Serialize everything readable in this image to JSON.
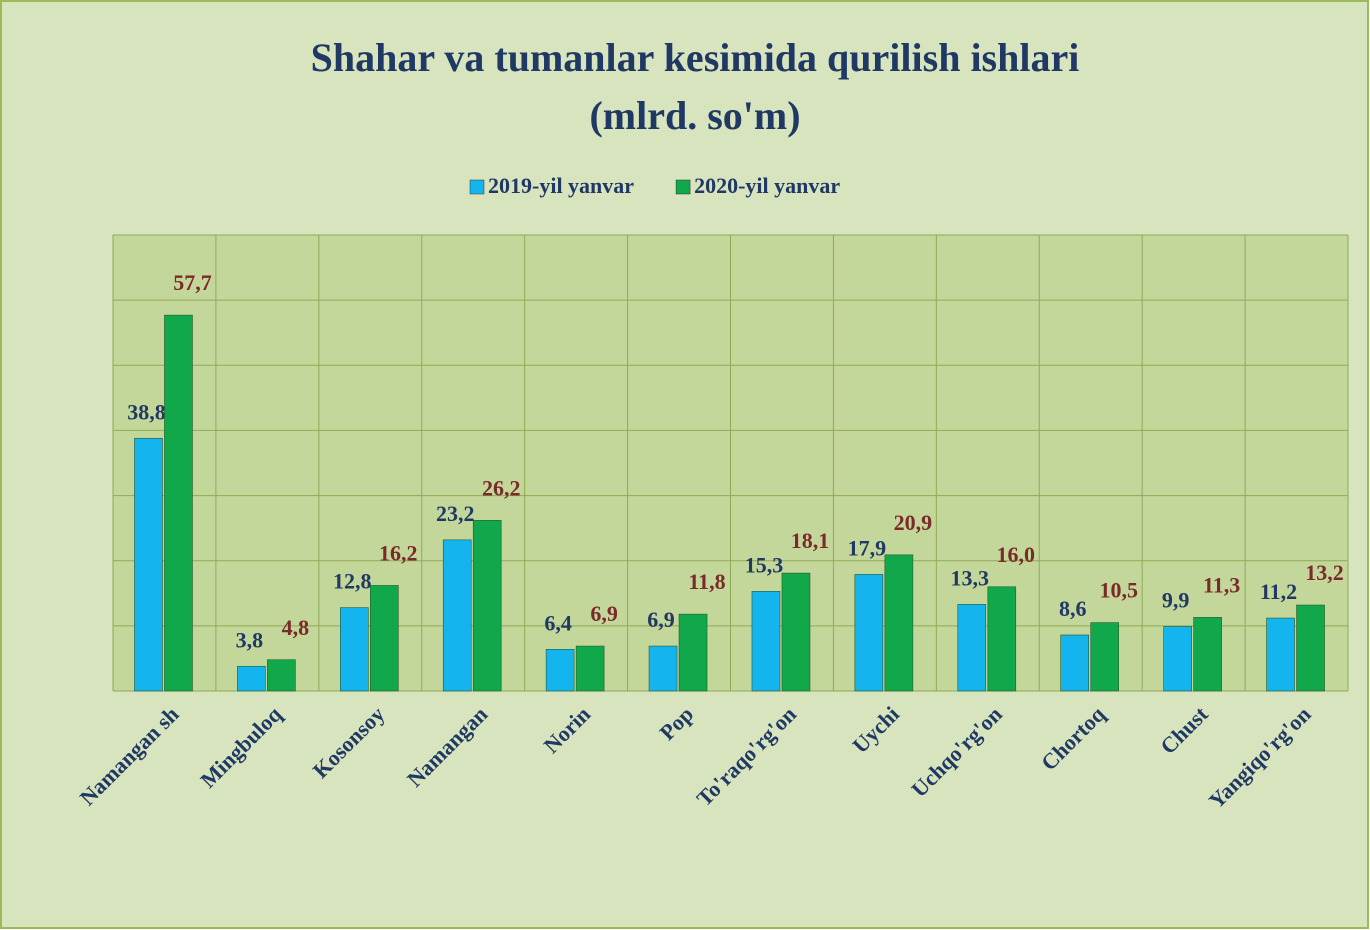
{
  "chart_data": {
    "type": "bar",
    "title": "Shahar va tumanlar kesimida qurilish ishlari",
    "subtitle": "(mlrd. so'm)",
    "categories": [
      "Namangan sh",
      "Mingbuloq",
      "Kosonsoy",
      "Namangan",
      "Norin",
      "Pop",
      "To'raqo'rg'on",
      "Uychi",
      "Uchqo'rg'on",
      "Chortoq",
      "Chust",
      "Yangiqo'rg'on"
    ],
    "series": [
      {
        "name": "2019-yil yanvar",
        "color": "#14b4ee",
        "values": [
          38.8,
          3.8,
          12.8,
          23.2,
          6.4,
          6.9,
          15.3,
          17.9,
          13.3,
          8.6,
          9.9,
          11.2
        ],
        "value_labels": [
          "38,8",
          "3,8",
          "12,8",
          "23,2",
          "6,4",
          "6,9",
          "15,3",
          "17,9",
          "13,3",
          "8,6",
          "9,9",
          "11,2"
        ]
      },
      {
        "name": "2020-yil yanvar",
        "color": "#10a84a",
        "values": [
          57.7,
          4.8,
          16.2,
          26.2,
          6.9,
          11.8,
          18.1,
          20.9,
          16.0,
          10.5,
          11.3,
          13.2
        ],
        "value_labels": [
          "57,7",
          "4,8",
          "16,2",
          "26,2",
          "6,9",
          "11,8",
          "18,1",
          "20,9",
          "16,0",
          "10,5",
          "11,3",
          "13,2"
        ]
      }
    ],
    "ylim": [
      0,
      70
    ],
    "yticks": [
      0,
      10,
      20,
      30,
      40,
      50,
      60,
      70
    ],
    "grid": true,
    "legend": "top"
  }
}
